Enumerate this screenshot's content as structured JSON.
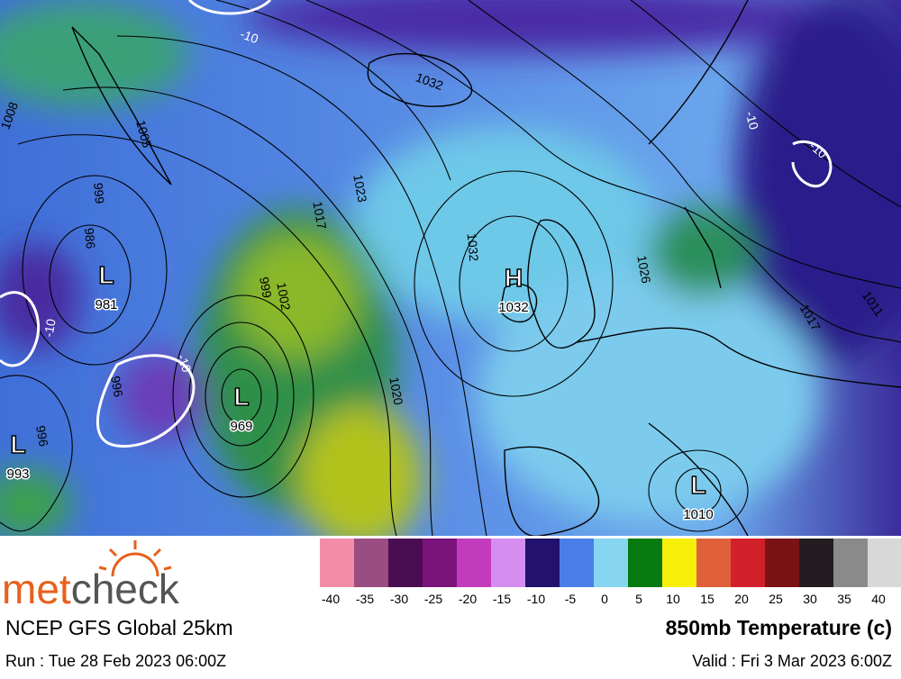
{
  "map": {
    "pressure_centers": [
      {
        "symbol": "L",
        "value": 981
      },
      {
        "symbol": "L",
        "value": 969
      },
      {
        "symbol": "L",
        "value": 993
      },
      {
        "symbol": "H",
        "value": 1032
      },
      {
        "symbol": "L",
        "value": 1010
      }
    ],
    "isobar_labels": [
      1008,
      1005,
      999,
      986,
      1032,
      1023,
      1017,
      1002,
      999,
      1032,
      1026,
      1020,
      1017,
      1011,
      996,
      996
    ],
    "temperature_labels": [
      -10,
      -10,
      -10,
      -10,
      -10
    ]
  },
  "legend": {
    "colors": [
      "#f28ca8",
      "#9a4d80",
      "#4b0d52",
      "#7a137a",
      "#c33bbd",
      "#d58df0",
      "#22116e",
      "#4a7de8",
      "#86d6f2",
      "#067a0e",
      "#f6ef0a",
      "#e0603a",
      "#d2202a",
      "#7a1414",
      "#231d22",
      "#8a8a8a",
      "#d8d8d8"
    ],
    "ticks": [
      -40,
      -35,
      -30,
      -25,
      -20,
      -15,
      -10,
      -5,
      0,
      5,
      10,
      15,
      20,
      25,
      30,
      35,
      40
    ]
  },
  "footer": {
    "brand": "metcheck",
    "model": "NCEP GFS Global 25km",
    "run": "Run : Tue 28 Feb 2023 06:00Z",
    "parameter": "850mb Temperature (c)",
    "valid": "Valid : Fri 3 Mar 2023 6:00Z"
  }
}
